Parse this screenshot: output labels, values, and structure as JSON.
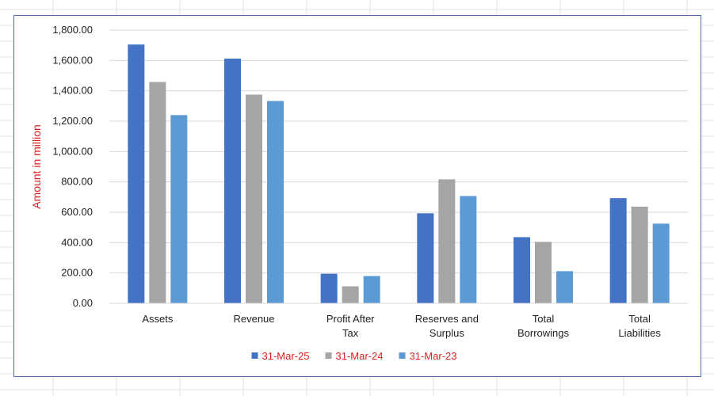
{
  "chart_data": {
    "type": "bar",
    "title": "",
    "xlabel": "",
    "ylabel": "Amount in million",
    "ylim": [
      0,
      1800
    ],
    "yticks": [
      0,
      200,
      400,
      600,
      800,
      1000,
      1200,
      1400,
      1600,
      1800
    ],
    "ytick_labels": [
      "0.00",
      "200.00",
      "400.00",
      "600.00",
      "800.00",
      "1,000.00",
      "1,200.00",
      "1,400.00",
      "1,600.00",
      "1,800.00"
    ],
    "grid": true,
    "legend_position": "bottom",
    "categories": [
      "Assets",
      "Revenue",
      "Profit After Tax",
      "Reserves and Surplus",
      "Total Borrowings",
      "Total Liabilities"
    ],
    "series": [
      {
        "name": "31-Mar-25",
        "color": "#4472c4",
        "values": [
          1705,
          1612,
          195,
          593,
          436,
          693
        ]
      },
      {
        "name": "31-Mar-24",
        "color": "#a5a5a5",
        "values": [
          1458,
          1375,
          112,
          817,
          405,
          637
        ]
      },
      {
        "name": "31-Mar-23",
        "color": "#5b9bd5",
        "values": [
          1240,
          1333,
          180,
          707,
          212,
          525
        ]
      }
    ],
    "colors": {
      "ylabel": "#e02020",
      "legend_text": "#e02020",
      "axis_text": "#222222",
      "gridline": "#d9d9d9",
      "frame_border": "#4a6fb0"
    }
  }
}
